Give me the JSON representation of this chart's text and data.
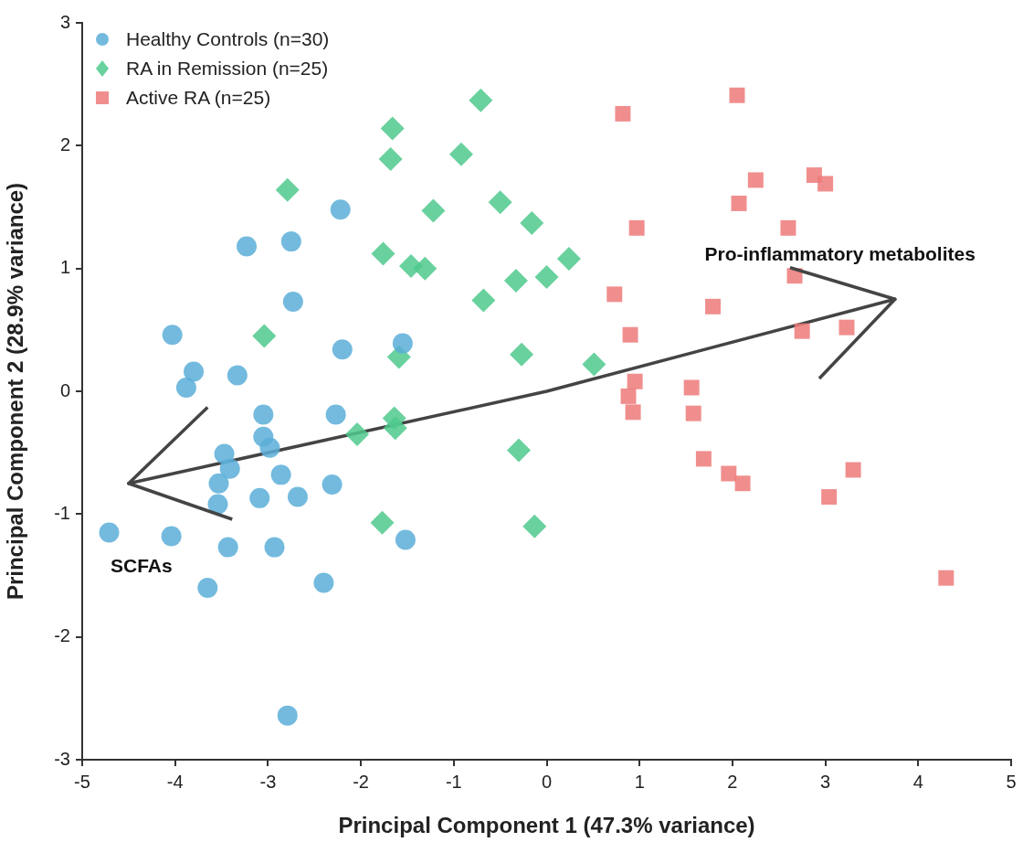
{
  "chart_data": {
    "type": "scatter",
    "xlabel": "Principal Component 1 (47.3% variance)",
    "ylabel": "Principal Component 2 (28.9% variance)",
    "xlim": [
      -5,
      5
    ],
    "ylim": [
      -3,
      3
    ],
    "xticks": [
      -5,
      -4,
      -3,
      -2,
      -1,
      0,
      1,
      2,
      3,
      4,
      5
    ],
    "yticks": [
      -3,
      -2,
      -1,
      0,
      1,
      2,
      3
    ],
    "grid": false,
    "legend": "top left",
    "series": [
      {
        "name": "Healthy Controls (n=30)",
        "color": "#5aaed8",
        "marker": "circle",
        "x": [
          -4.71,
          -4.03,
          -3.8,
          -3.88,
          -4.04,
          -3.65,
          -3.43,
          -3.47,
          -3.41,
          -3.53,
          -3.54,
          -3.33,
          -3.23,
          -3.05,
          -3.05,
          -2.98,
          -3.09,
          -2.93,
          -2.86,
          -2.68,
          -2.75,
          -2.73,
          -2.79,
          -2.22,
          -2.2,
          -2.27,
          -2.31,
          -2.4,
          -1.55,
          -1.52
        ],
        "values": [
          -1.15,
          0.46,
          0.16,
          0.03,
          -1.18,
          -1.6,
          -1.27,
          -0.51,
          -0.63,
          -0.75,
          -0.92,
          0.13,
          1.18,
          -0.19,
          -0.37,
          -0.46,
          -0.87,
          -1.27,
          -0.68,
          -0.86,
          1.22,
          0.73,
          -2.64,
          1.48,
          0.34,
          -0.19,
          -0.76,
          -1.56,
          0.39,
          -1.21
        ]
      },
      {
        "name": "RA in Remission (n=25)",
        "color": "#4fc98d",
        "marker": "diamond",
        "x": [
          -2.79,
          -3.04,
          -0.71,
          -1.66,
          -1.68,
          -0.92,
          -1.22,
          -0.5,
          -0.16,
          -1.76,
          -1.46,
          -1.31,
          -0.68,
          -0.33,
          0.0,
          0.24,
          -1.59,
          -0.27,
          0.51,
          -2.04,
          -1.64,
          -1.63,
          -0.3,
          -1.77,
          -0.13
        ],
        "values": [
          1.64,
          0.45,
          2.37,
          2.14,
          1.89,
          1.93,
          1.47,
          1.54,
          1.37,
          1.12,
          1.02,
          1.0,
          0.74,
          0.9,
          0.93,
          1.08,
          0.28,
          0.3,
          0.22,
          -0.35,
          -0.22,
          -0.3,
          -0.48,
          -1.07,
          -1.1
        ]
      },
      {
        "name": "Active RA (n=25)",
        "color": "#ed7a7a",
        "marker": "square",
        "x": [
          0.82,
          2.05,
          0.97,
          2.07,
          2.25,
          2.88,
          3.0,
          2.6,
          2.67,
          0.73,
          1.79,
          0.9,
          2.75,
          3.23,
          0.95,
          0.88,
          0.93,
          1.56,
          1.58,
          1.69,
          1.96,
          2.11,
          3.3,
          3.04,
          4.3
        ],
        "values": [
          2.26,
          2.41,
          1.33,
          1.53,
          1.72,
          1.76,
          1.69,
          1.33,
          0.94,
          0.79,
          0.69,
          0.46,
          0.49,
          0.52,
          0.08,
          -0.04,
          -0.17,
          0.03,
          -0.18,
          -0.55,
          -0.67,
          -0.75,
          -0.64,
          -0.86,
          -1.52
        ]
      },
      {
        "type": "line",
        "color": "#444444",
        "marker": "none",
        "x": [
          -4.5,
          0,
          3.75
        ],
        "values": [
          -0.75,
          0,
          0.75
        ]
      }
    ],
    "annotations": [
      "Pro-inflammatory metabolites",
      "SCFAs"
    ]
  }
}
